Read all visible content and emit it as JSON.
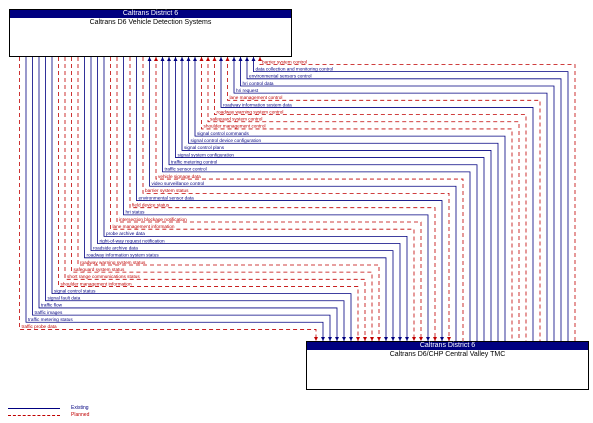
{
  "top_box": {
    "header": "Caltrans District 6",
    "title": "Caltrans D6 Vehicle Detection Systems"
  },
  "bottom_box": {
    "header": "Caltrans District 6",
    "title": "Caltrans D6/CHP Central Valley TMC"
  },
  "legend": {
    "existing": "Existing",
    "planned": "Planned"
  },
  "colors": {
    "existing": "#000080",
    "planned": "#c00000",
    "header_bg": "#000080"
  },
  "flows": [
    {
      "label": "barrier system control",
      "status": "planned",
      "direction": "to_top"
    },
    {
      "label": "data collection and monitoring control",
      "status": "existing",
      "direction": "to_top"
    },
    {
      "label": "environmental sensors control",
      "status": "existing",
      "direction": "to_top"
    },
    {
      "label": "hri control data",
      "status": "existing",
      "direction": "to_top"
    },
    {
      "label": "hri request",
      "status": "existing",
      "direction": "to_top"
    },
    {
      "label": "lane management control",
      "status": "planned",
      "direction": "to_top"
    },
    {
      "label": "roadway information system data",
      "status": "existing",
      "direction": "to_top"
    },
    {
      "label": "roadway warning system control",
      "status": "planned",
      "direction": "to_top"
    },
    {
      "label": "safeguard system control",
      "status": "planned",
      "direction": "to_top"
    },
    {
      "label": "shoulder management control",
      "status": "planned",
      "direction": "to_top"
    },
    {
      "label": "signal control commands",
      "status": "existing",
      "direction": "to_top"
    },
    {
      "label": "signal control device configuration",
      "status": "existing",
      "direction": "to_top"
    },
    {
      "label": "signal control plans",
      "status": "existing",
      "direction": "to_top"
    },
    {
      "label": "signal system configuration",
      "status": "existing",
      "direction": "to_top"
    },
    {
      "label": "traffic metering control",
      "status": "existing",
      "direction": "to_top"
    },
    {
      "label": "traffic sensor control",
      "status": "existing",
      "direction": "to_top"
    },
    {
      "label": "vehicle signage data",
      "status": "planned",
      "direction": "to_top"
    },
    {
      "label": "video surveillance control",
      "status": "existing",
      "direction": "to_top"
    },
    {
      "label": "barrier system status",
      "status": "planned",
      "direction": "to_bottom"
    },
    {
      "label": "environmental sensor data",
      "status": "existing",
      "direction": "to_bottom"
    },
    {
      "label": "field device status",
      "status": "planned",
      "direction": "to_bottom"
    },
    {
      "label": "hri status",
      "status": "existing",
      "direction": "to_bottom"
    },
    {
      "label": "intersection blockage notification",
      "status": "planned",
      "direction": "to_bottom"
    },
    {
      "label": "lane management information",
      "status": "planned",
      "direction": "to_bottom"
    },
    {
      "label": "probe archive data",
      "status": "existing",
      "direction": "to_bottom"
    },
    {
      "label": "right-of-way request notification",
      "status": "existing",
      "direction": "to_bottom"
    },
    {
      "label": "roadside archive data",
      "status": "existing",
      "direction": "to_bottom"
    },
    {
      "label": "roadway information system status",
      "status": "existing",
      "direction": "to_bottom"
    },
    {
      "label": "roadway warning system status",
      "status": "planned",
      "direction": "to_bottom"
    },
    {
      "label": "safeguard system status",
      "status": "planned",
      "direction": "to_bottom"
    },
    {
      "label": "short range communications status",
      "status": "planned",
      "direction": "to_bottom"
    },
    {
      "label": "shoulder management information",
      "status": "planned",
      "direction": "to_bottom"
    },
    {
      "label": "signal control status",
      "status": "existing",
      "direction": "to_bottom"
    },
    {
      "label": "signal fault data",
      "status": "existing",
      "direction": "to_bottom"
    },
    {
      "label": "traffic flow",
      "status": "existing",
      "direction": "to_bottom"
    },
    {
      "label": "traffic images",
      "status": "existing",
      "direction": "to_bottom"
    },
    {
      "label": "traffic metering status",
      "status": "existing",
      "direction": "to_bottom"
    },
    {
      "label": "traffic probe data",
      "status": "planned",
      "direction": "to_bottom"
    }
  ]
}
